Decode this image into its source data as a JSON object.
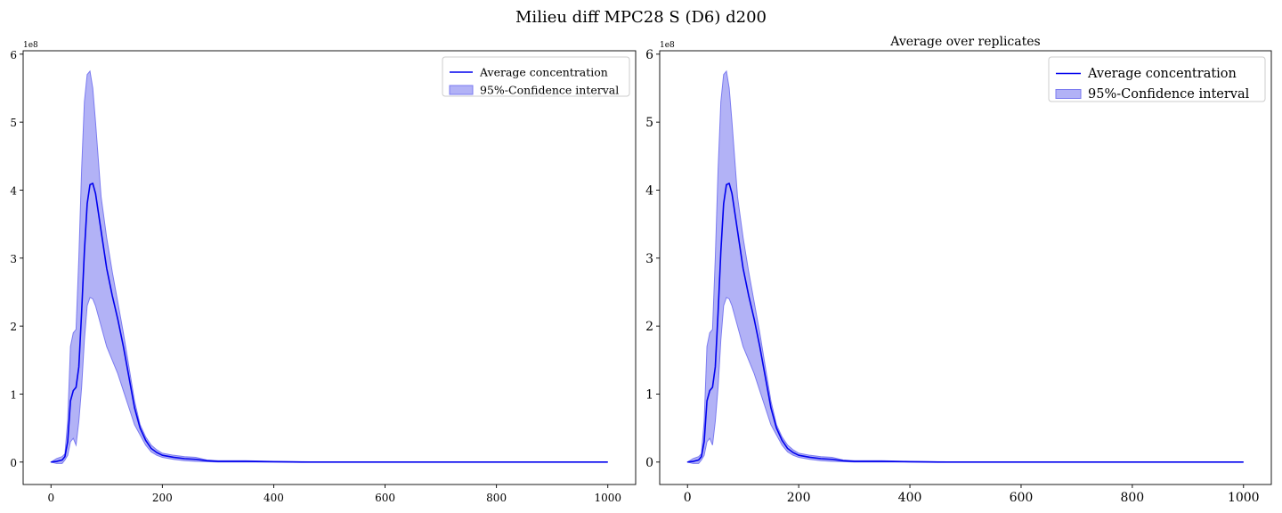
{
  "figure": {
    "suptitle": "Milieu diff MPC28 S (D6) d200"
  },
  "chart_data": [
    {
      "type": "area",
      "title": "",
      "xlabel": "",
      "ylabel": "",
      "y_offset_label": "1e8",
      "xlim": [
        -50,
        1050
      ],
      "ylim": [
        -0.33,
        6.05
      ],
      "xticks": [
        0,
        200,
        400,
        600,
        800,
        1000
      ],
      "xtick_labels": [
        "0",
        "200",
        "400",
        "600",
        "800",
        "1000"
      ],
      "yticks": [
        0,
        1,
        2,
        3,
        4,
        5,
        6
      ],
      "ytick_labels": [
        "0",
        "1",
        "2",
        "3",
        "4",
        "5",
        "6"
      ],
      "grid": false,
      "legend": {
        "placement": "upper right",
        "entries": [
          "Average concentration",
          "95%-Confidence interval"
        ]
      },
      "line_color": "#0000ee",
      "band_color": "#7b7bf0",
      "series": [
        {
          "name": "Average concentration",
          "x": [
            0,
            10,
            20,
            25,
            30,
            35,
            40,
            45,
            50,
            55,
            60,
            65,
            70,
            75,
            80,
            90,
            100,
            110,
            120,
            130,
            140,
            150,
            160,
            170,
            180,
            190,
            200,
            220,
            240,
            260,
            280,
            300,
            350,
            400,
            450,
            500,
            600,
            700,
            800,
            900,
            1000
          ],
          "y": [
            0,
            0.01,
            0.03,
            0.08,
            0.3,
            0.9,
            1.05,
            1.1,
            1.4,
            2.2,
            3.1,
            3.8,
            4.08,
            4.1,
            3.95,
            3.4,
            2.85,
            2.45,
            2.1,
            1.7,
            1.25,
            0.8,
            0.5,
            0.32,
            0.2,
            0.14,
            0.1,
            0.07,
            0.05,
            0.04,
            0.02,
            0.01,
            0.01,
            0.005,
            0,
            0,
            0,
            0,
            0,
            0,
            0
          ]
        },
        {
          "name": "95%-Confidence interval (upper)",
          "x": [
            0,
            10,
            20,
            25,
            30,
            35,
            40,
            45,
            50,
            55,
            60,
            65,
            70,
            75,
            80,
            90,
            100,
            110,
            120,
            130,
            140,
            150,
            160,
            170,
            180,
            190,
            200,
            220,
            240,
            260,
            280,
            300,
            350,
            400,
            450,
            500,
            600,
            700,
            800,
            900,
            1000
          ],
          "y": [
            0,
            0.05,
            0.08,
            0.12,
            0.6,
            1.7,
            1.9,
            1.95,
            3.0,
            4.3,
            5.3,
            5.7,
            5.75,
            5.5,
            5.0,
            3.9,
            3.3,
            2.8,
            2.35,
            1.9,
            1.4,
            0.9,
            0.55,
            0.37,
            0.25,
            0.18,
            0.13,
            0.1,
            0.08,
            0.07,
            0.03,
            0.02,
            0.02,
            0.01,
            0.005,
            0,
            0,
            0,
            0,
            0,
            0
          ]
        },
        {
          "name": "95%-Confidence interval (lower)",
          "x": [
            0,
            10,
            20,
            25,
            30,
            35,
            40,
            45,
            50,
            55,
            60,
            65,
            70,
            75,
            80,
            90,
            100,
            110,
            120,
            130,
            140,
            150,
            160,
            170,
            180,
            190,
            200,
            220,
            240,
            260,
            280,
            300,
            350,
            400,
            450,
            500,
            600,
            700,
            800,
            900,
            1000
          ],
          "y": [
            0,
            -0.02,
            -0.02,
            0.03,
            0.1,
            0.3,
            0.35,
            0.25,
            0.6,
            1.1,
            1.8,
            2.3,
            2.42,
            2.4,
            2.3,
            2.0,
            1.7,
            1.5,
            1.3,
            1.05,
            0.8,
            0.55,
            0.4,
            0.25,
            0.15,
            0.1,
            0.07,
            0.04,
            0.02,
            0.01,
            0.005,
            0,
            0,
            0,
            0,
            0,
            0,
            0,
            0,
            0,
            0
          ]
        }
      ]
    },
    {
      "type": "area",
      "title": "Average over replicates",
      "xlabel": "",
      "ylabel": "",
      "y_offset_label": "1e8",
      "xlim": [
        -50,
        1050
      ],
      "ylim": [
        -0.33,
        6.05
      ],
      "xticks": [
        0,
        200,
        400,
        600,
        800,
        1000
      ],
      "xtick_labels": [
        "0",
        "200",
        "400",
        "600",
        "800",
        "1000"
      ],
      "yticks": [
        0,
        1,
        2,
        3,
        4,
        5,
        6
      ],
      "ytick_labels": [
        "0",
        "1",
        "2",
        "3",
        "4",
        "5",
        "6"
      ],
      "grid": false,
      "legend": {
        "placement": "upper right",
        "entries": [
          "Average concentration",
          "95%-Confidence interval"
        ]
      },
      "line_color": "#0000ee",
      "band_color": "#7b7bf0",
      "series": [
        {
          "name": "Average concentration",
          "x": [
            0,
            10,
            20,
            25,
            30,
            35,
            40,
            45,
            50,
            55,
            60,
            65,
            70,
            75,
            80,
            90,
            100,
            110,
            120,
            130,
            140,
            150,
            160,
            170,
            180,
            190,
            200,
            220,
            240,
            260,
            280,
            300,
            350,
            400,
            450,
            500,
            600,
            700,
            800,
            900,
            1000
          ],
          "y": [
            0,
            0.01,
            0.03,
            0.08,
            0.3,
            0.9,
            1.05,
            1.1,
            1.4,
            2.2,
            3.1,
            3.8,
            4.08,
            4.1,
            3.95,
            3.4,
            2.85,
            2.45,
            2.1,
            1.7,
            1.25,
            0.8,
            0.5,
            0.32,
            0.2,
            0.14,
            0.1,
            0.07,
            0.05,
            0.04,
            0.02,
            0.01,
            0.01,
            0.005,
            0,
            0,
            0,
            0,
            0,
            0,
            0
          ]
        },
        {
          "name": "95%-Confidence interval (upper)",
          "x": [
            0,
            10,
            20,
            25,
            30,
            35,
            40,
            45,
            50,
            55,
            60,
            65,
            70,
            75,
            80,
            90,
            100,
            110,
            120,
            130,
            140,
            150,
            160,
            170,
            180,
            190,
            200,
            220,
            240,
            260,
            280,
            300,
            350,
            400,
            450,
            500,
            600,
            700,
            800,
            900,
            1000
          ],
          "y": [
            0,
            0.05,
            0.08,
            0.12,
            0.6,
            1.7,
            1.9,
            1.95,
            3.0,
            4.3,
            5.3,
            5.7,
            5.75,
            5.5,
            5.0,
            3.9,
            3.3,
            2.8,
            2.35,
            1.9,
            1.4,
            0.9,
            0.55,
            0.37,
            0.25,
            0.18,
            0.13,
            0.1,
            0.08,
            0.07,
            0.03,
            0.02,
            0.02,
            0.01,
            0.005,
            0,
            0,
            0,
            0,
            0,
            0
          ]
        },
        {
          "name": "95%-Confidence interval (lower)",
          "x": [
            0,
            10,
            20,
            25,
            30,
            35,
            40,
            45,
            50,
            55,
            60,
            65,
            70,
            75,
            80,
            90,
            100,
            110,
            120,
            130,
            140,
            150,
            160,
            170,
            180,
            190,
            200,
            220,
            240,
            260,
            280,
            300,
            350,
            400,
            450,
            500,
            600,
            700,
            800,
            900,
            1000
          ],
          "y": [
            0,
            -0.02,
            -0.02,
            0.03,
            0.1,
            0.3,
            0.35,
            0.25,
            0.6,
            1.1,
            1.8,
            2.3,
            2.42,
            2.4,
            2.3,
            2.0,
            1.7,
            1.5,
            1.3,
            1.05,
            0.8,
            0.55,
            0.4,
            0.25,
            0.15,
            0.1,
            0.07,
            0.04,
            0.02,
            0.01,
            0.005,
            0,
            0,
            0,
            0,
            0,
            0,
            0,
            0,
            0,
            0
          ]
        }
      ]
    }
  ]
}
